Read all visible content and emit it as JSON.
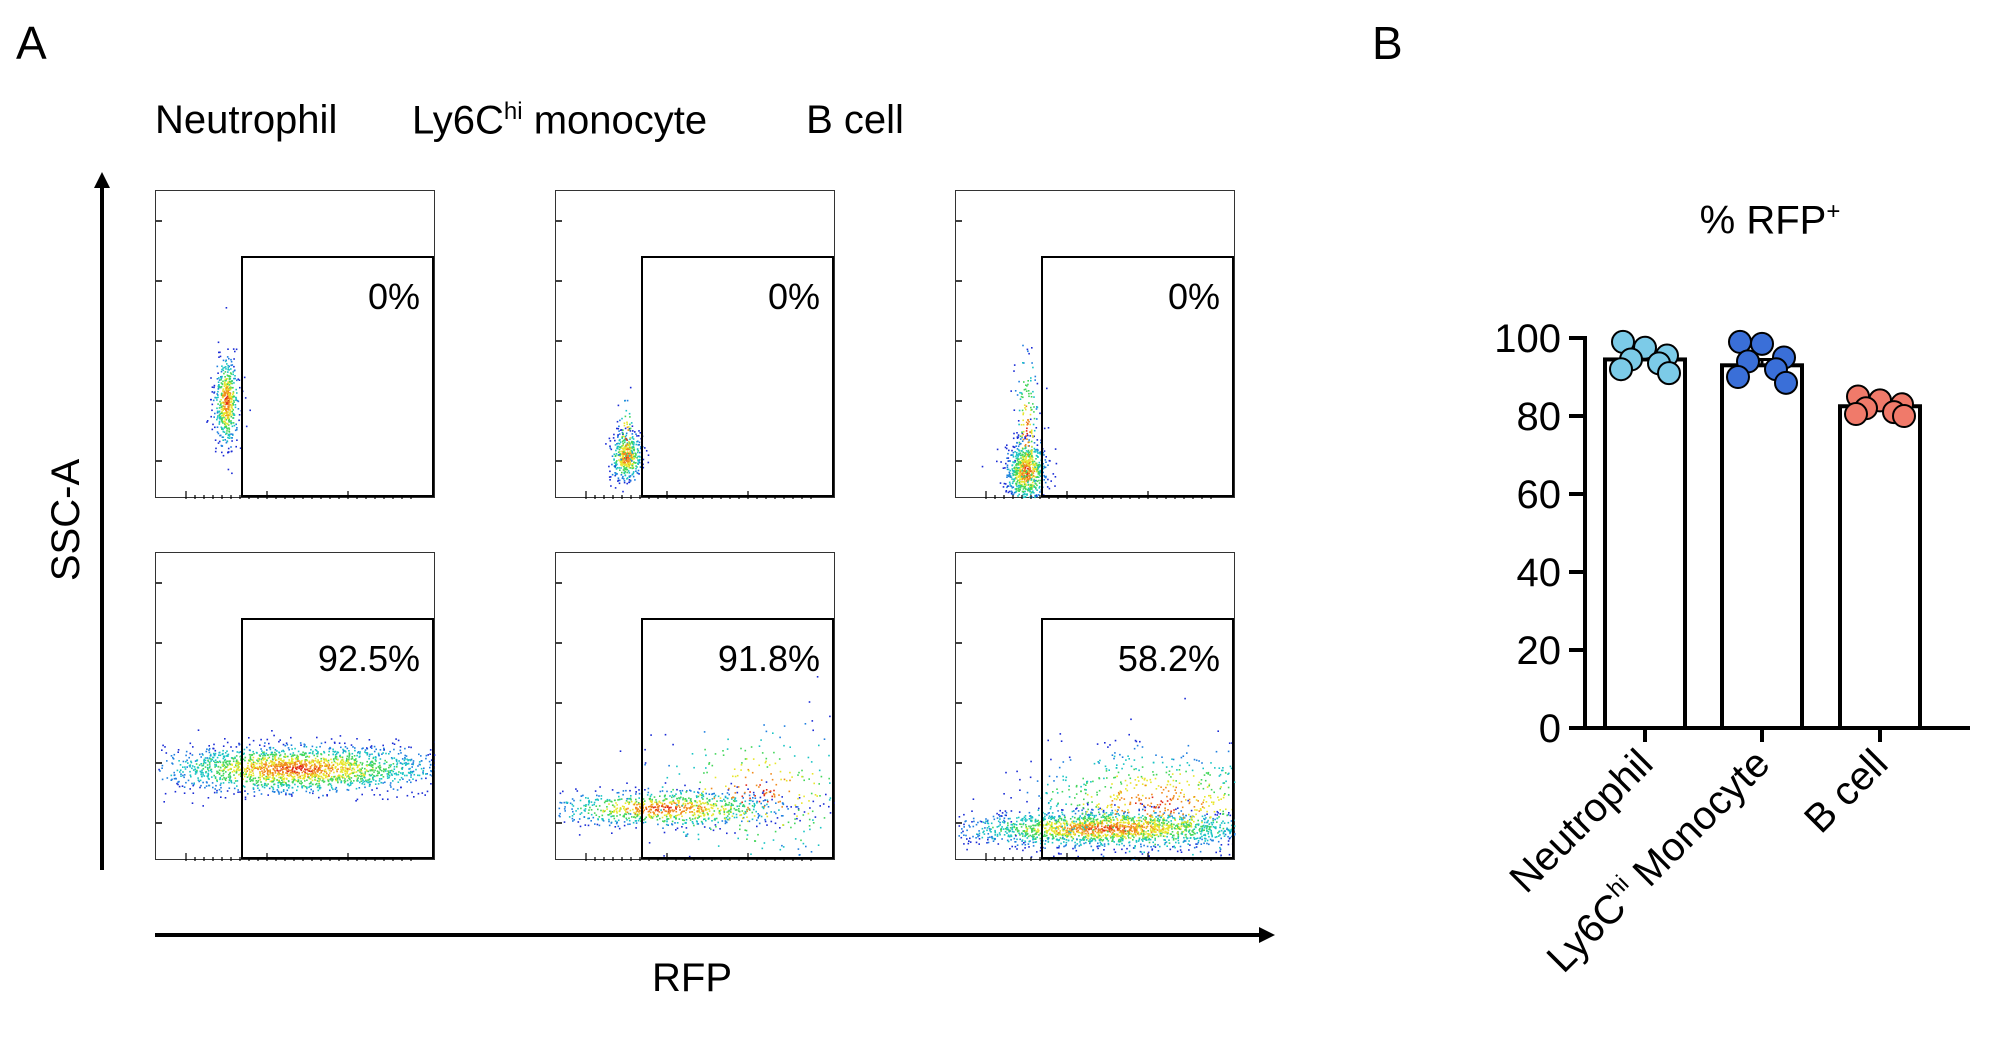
{
  "panel_a": {
    "letter": "A",
    "columns": [
      {
        "title_main": "Neutrophil",
        "title_sup": "",
        "title_after": ""
      },
      {
        "title_main": "Ly6C",
        "title_sup": "hi",
        "title_after": " monocyte"
      },
      {
        "title_main": "B cell",
        "title_sup": "",
        "title_after": ""
      }
    ],
    "y_axis_label": "SSC-A",
    "x_axis_label": "RFP",
    "plots": [
      {
        "row": 0,
        "col": 0,
        "percent": "0%"
      },
      {
        "row": 0,
        "col": 1,
        "percent": "0%"
      },
      {
        "row": 0,
        "col": 2,
        "percent": "0%"
      },
      {
        "row": 1,
        "col": 0,
        "percent": "92.5%"
      },
      {
        "row": 1,
        "col": 1,
        "percent": "91.8%"
      },
      {
        "row": 1,
        "col": 2,
        "percent": "58.2%"
      }
    ]
  },
  "panel_b": {
    "letter": "B",
    "title_main": "% RFP",
    "title_sup": "+",
    "categories": [
      {
        "main": "Neutrophil",
        "sup": "",
        "after": ""
      },
      {
        "main": "Ly6C",
        "sup": "hi",
        "after": " Monocyte"
      },
      {
        "main": "B cell",
        "sup": "",
        "after": ""
      }
    ]
  },
  "chart_data": {
    "type": "bar",
    "categories": [
      "Neutrophil",
      "Ly6Chi Monocyte",
      "B cell"
    ],
    "values": [
      94.5,
      93,
      82.5
    ],
    "errors": [
      1.3,
      1.5,
      0.8
    ],
    "points": [
      [
        99,
        97.5,
        95.5,
        94.5,
        93.5,
        92,
        91
      ],
      [
        99,
        98.5,
        95,
        94,
        92,
        90,
        88.5
      ],
      [
        85,
        84,
        83,
        82,
        81,
        80.5,
        80
      ]
    ],
    "point_colors": [
      "#7ccbe8",
      "#3a6fd8",
      "#f07a6a"
    ],
    "title": "% RFP+",
    "ylim": [
      0,
      100
    ],
    "yticks": [
      0,
      20,
      40,
      60,
      80,
      100
    ],
    "ylabel": "",
    "xlabel": ""
  }
}
